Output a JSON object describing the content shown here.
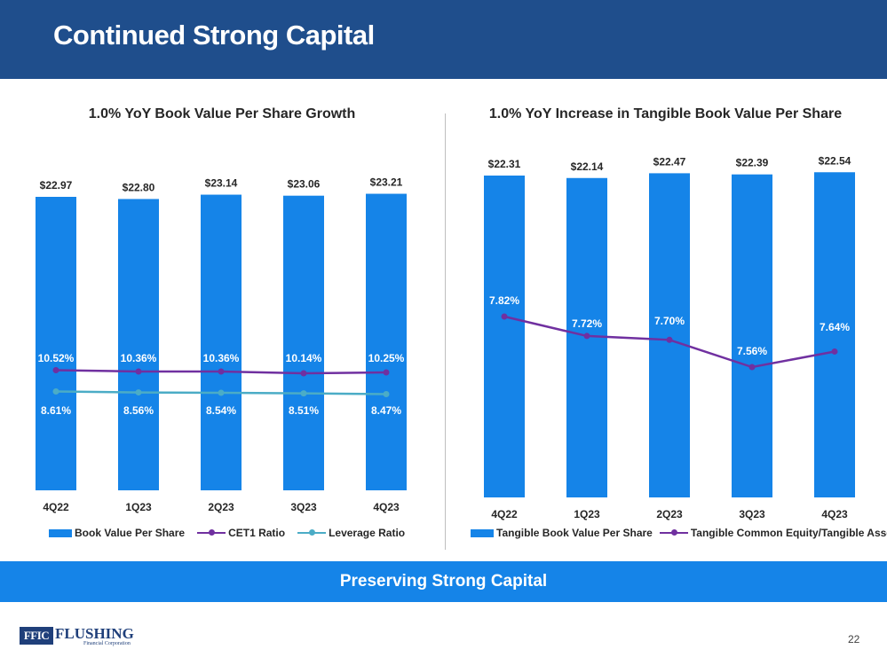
{
  "header": {
    "title": "Continued Strong Capital"
  },
  "colors": {
    "header_bg": "#1f4e8c",
    "bar": "#1584e8",
    "purple": "#7030a0",
    "teal": "#4bacc6",
    "banner_bg": "#1584e8"
  },
  "chart_data": [
    {
      "type": "bar",
      "title": "1.0% YoY Book Value Per Share Growth",
      "categories": [
        "4Q22",
        "1Q23",
        "2Q23",
        "3Q23",
        "4Q23"
      ],
      "series": [
        {
          "name": "Book Value Per Share",
          "kind": "bar",
          "values": [
            22.97,
            22.8,
            23.14,
            23.06,
            23.21
          ],
          "labels": [
            "$22.97",
            "$22.80",
            "$23.14",
            "$23.06",
            "$23.21"
          ]
        },
        {
          "name": "CET1 Ratio",
          "kind": "line",
          "values": [
            10.52,
            10.36,
            10.36,
            10.14,
            10.25
          ],
          "labels": [
            "10.52%",
            "10.36%",
            "10.36%",
            "10.14%",
            "10.25%"
          ]
        },
        {
          "name": "Leverage Ratio",
          "kind": "line",
          "values": [
            8.61,
            8.56,
            8.54,
            8.51,
            8.47
          ],
          "labels": [
            "8.61%",
            "8.56%",
            "8.54%",
            "8.51%",
            "8.47%"
          ]
        }
      ],
      "legend_position": "bottom"
    },
    {
      "type": "bar",
      "title": "1.0% YoY Increase in Tangible Book Value Per Share",
      "categories": [
        "4Q22",
        "1Q23",
        "2Q23",
        "3Q23",
        "4Q23"
      ],
      "series": [
        {
          "name": "Tangible Book Value Per Share",
          "kind": "bar",
          "values": [
            22.31,
            22.14,
            22.47,
            22.39,
            22.54
          ],
          "labels": [
            "$22.31",
            "$22.14",
            "$22.47",
            "$22.39",
            "$22.54"
          ]
        },
        {
          "name": "Tangible Common Equity/Tangible Assets",
          "kind": "line",
          "values": [
            7.82,
            7.72,
            7.7,
            7.56,
            7.64
          ],
          "labels": [
            "7.82%",
            "7.72%",
            "7.70%",
            "7.56%",
            "7.64%"
          ]
        }
      ],
      "legend_position": "bottom"
    }
  ],
  "banner": {
    "text": "Preserving Strong Capital"
  },
  "footer": {
    "logo_mark": "FFIC",
    "logo_name": "FLUSHING",
    "logo_sub": "Financial Corporation",
    "page_number": "22"
  }
}
